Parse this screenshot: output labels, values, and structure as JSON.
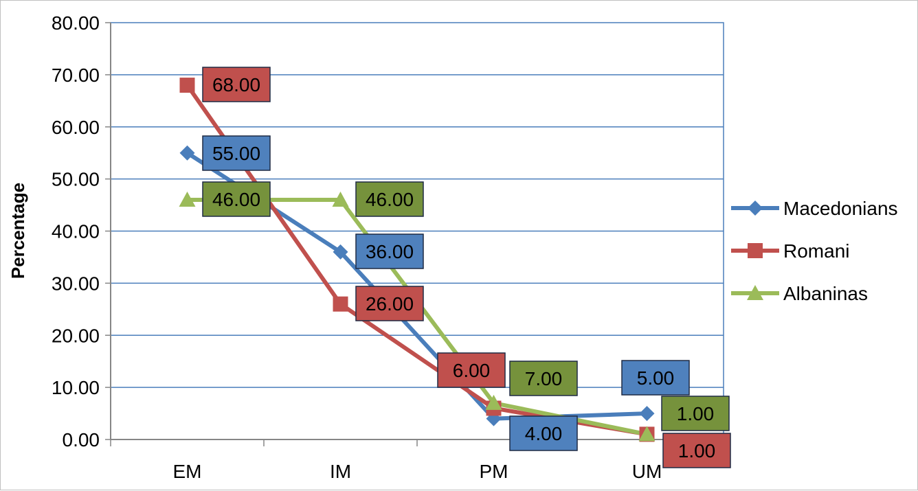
{
  "chart_data": {
    "type": "line",
    "categories": [
      "EM",
      "IM",
      "PM",
      "UM"
    ],
    "ylabel": "Percentage",
    "ylim": [
      0,
      80
    ],
    "yticks": [
      "0.00",
      "10.00",
      "20.00",
      "30.00",
      "40.00",
      "50.00",
      "60.00",
      "70.00",
      "80.00"
    ],
    "grid": true,
    "legend_position": "right",
    "series": [
      {
        "name": "Macedonians",
        "color": "#4a7ebb",
        "label_fill": "#4f81bd",
        "marker": "diamond",
        "values": [
          55,
          36,
          4,
          5
        ],
        "labels": [
          "55.00",
          "36.00",
          "4.00",
          "5.00"
        ]
      },
      {
        "name": "Romani",
        "color": "#c0504d",
        "label_fill": "#c0504d",
        "marker": "square",
        "values": [
          68,
          26,
          6,
          1
        ],
        "labels": [
          "68.00",
          "26.00",
          "6.00",
          "1.00"
        ]
      },
      {
        "name": "Albaninas",
        "color": "#9bbb59",
        "label_fill": "#76923c",
        "marker": "triangle",
        "values": [
          46,
          46,
          7,
          1
        ],
        "labels": [
          "46.00",
          "46.00",
          "7.00",
          "1.00"
        ]
      }
    ]
  }
}
